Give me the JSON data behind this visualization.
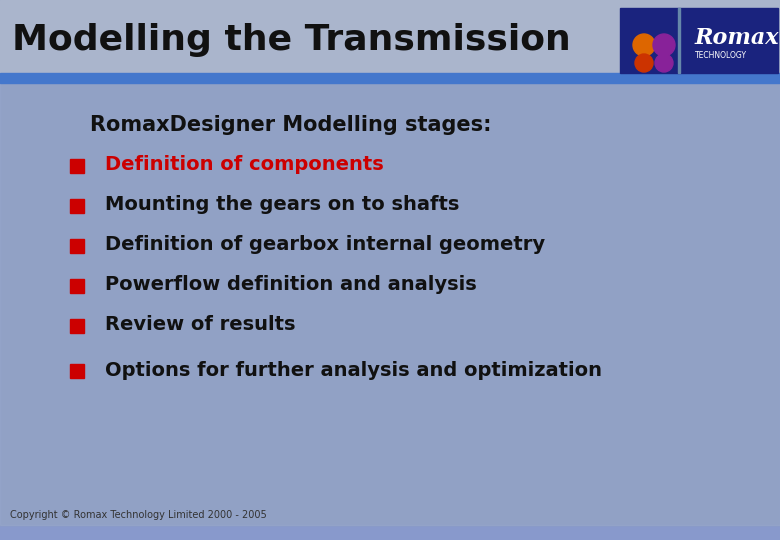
{
  "title": "Modelling the Transmission",
  "title_color": "#111111",
  "header_bar_color": "#4477cc",
  "body_bg_color": "#8899cc",
  "subtitle": "RomaxDesigner Modelling stages:",
  "subtitle_color": "#111111",
  "bullet_items": [
    "Definition of components",
    "Mounting the gears on to shafts",
    "Definition of gearbox internal geometry",
    "Powerflow definition and analysis",
    "Review of results",
    "Options for further analysis and optimization"
  ],
  "bullet_colors": [
    "#cc0000",
    "#111111",
    "#111111",
    "#111111",
    "#111111",
    "#111111"
  ],
  "bullet_marker_color": "#cc0000",
  "copyright_text": "Copyright © Romax Technology Limited 2000 - 2005",
  "copyright_color": "#333333",
  "romax_bg_color": "#1a237e",
  "romax_text": "Romax",
  "romax_sub_text": "TECHNOLOGY",
  "fig_width": 7.8,
  "fig_height": 5.4
}
